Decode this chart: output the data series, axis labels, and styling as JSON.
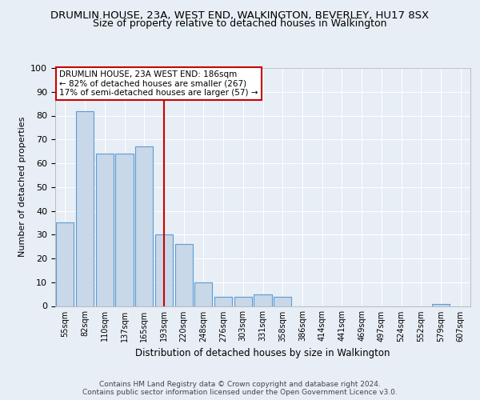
{
  "title1": "DRUMLIN HOUSE, 23A, WEST END, WALKINGTON, BEVERLEY, HU17 8SX",
  "title2": "Size of property relative to detached houses in Walkington",
  "xlabel": "Distribution of detached houses by size in Walkington",
  "ylabel": "Number of detached properties",
  "categories": [
    "55sqm",
    "82sqm",
    "110sqm",
    "137sqm",
    "165sqm",
    "193sqm",
    "220sqm",
    "248sqm",
    "276sqm",
    "303sqm",
    "331sqm",
    "358sqm",
    "386sqm",
    "414sqm",
    "441sqm",
    "469sqm",
    "497sqm",
    "524sqm",
    "552sqm",
    "579sqm",
    "607sqm"
  ],
  "values": [
    35,
    82,
    64,
    64,
    67,
    30,
    26,
    10,
    4,
    4,
    5,
    4,
    0,
    0,
    0,
    0,
    0,
    0,
    0,
    1,
    0
  ],
  "bar_color": "#c8d8e8",
  "bar_edge_color": "#5b9bd5",
  "redline_index": 5,
  "ylim": [
    0,
    100
  ],
  "annotation_text": "DRUMLIN HOUSE, 23A WEST END: 186sqm\n← 82% of detached houses are smaller (267)\n17% of semi-detached houses are larger (57) →",
  "annotation_box_color": "#ffffff",
  "annotation_box_edgecolor": "#cc0000",
  "footer1": "Contains HM Land Registry data © Crown copyright and database right 2024.",
  "footer2": "Contains public sector information licensed under the Open Government Licence v3.0.",
  "bg_color": "#e8eef5",
  "plot_bg_color": "#e8eef5",
  "title1_fontsize": 9.5,
  "title2_fontsize": 9,
  "grid_color": "#ffffff"
}
